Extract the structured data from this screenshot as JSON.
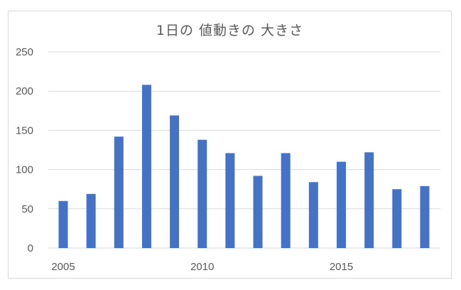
{
  "chart_data": {
    "type": "bar",
    "title": "1日の 値動きの 大きさ",
    "xlabel": "",
    "ylabel": "",
    "x": [
      2005,
      2006,
      2007,
      2008,
      2009,
      2010,
      2011,
      2012,
      2013,
      2014,
      2015,
      2016,
      2017,
      2018
    ],
    "values": [
      60,
      69,
      142,
      208,
      169,
      138,
      121,
      92,
      121,
      84,
      110,
      122,
      75,
      79
    ],
    "ylim": [
      0,
      250
    ],
    "yticks": [
      "0",
      "50",
      "100",
      "150",
      "200",
      "250"
    ],
    "xticks": [
      "2005",
      "2010",
      "2015"
    ],
    "grid": true,
    "bar_color": "#4472c4",
    "grid_color": "#d9d9d9"
  }
}
